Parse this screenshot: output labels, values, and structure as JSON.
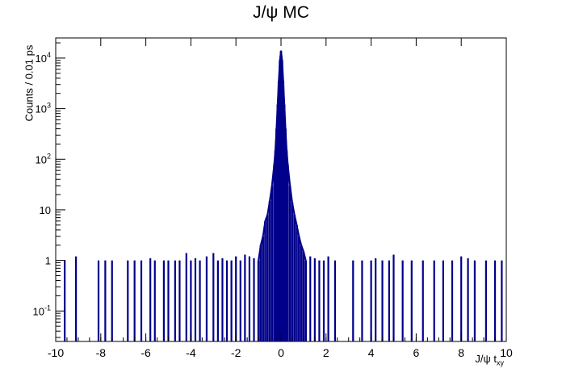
{
  "chart_data": {
    "type": "histogram",
    "title": "J/ψ MC",
    "xlabel": "J/ψ t",
    "xlabel_sub": "xy",
    "ylabel": "Counts / 0.01 ps",
    "xlim": [
      -10,
      10
    ],
    "ylim": [
      0.025,
      25000
    ],
    "yscale": "log",
    "x_ticks": [
      -10,
      -8,
      -6,
      -4,
      -2,
      0,
      2,
      4,
      6,
      8,
      10
    ],
    "x_tick_labels": [
      "-10",
      "-8",
      "-6",
      "-4",
      "-2",
      "0",
      "2",
      "4",
      "6",
      "8",
      "10"
    ],
    "y_ticks": [
      0.1,
      1,
      10,
      100,
      1000,
      10000
    ],
    "y_tick_labels": [
      {
        "base": "10",
        "exp": "-1"
      },
      {
        "base": "1",
        "exp": ""
      },
      {
        "base": "10",
        "exp": ""
      },
      {
        "base": "10",
        "exp": "2"
      },
      {
        "base": "10",
        "exp": "3"
      },
      {
        "base": "10",
        "exp": "4"
      }
    ],
    "color": "#00008b",
    "peak": {
      "x": 0.0,
      "y": 14000
    },
    "core": [
      [
        -1.0,
        1
      ],
      [
        -0.9,
        2
      ],
      [
        -0.8,
        3
      ],
      [
        -0.7,
        6
      ],
      [
        -0.6,
        8
      ],
      [
        -0.5,
        15
      ],
      [
        -0.4,
        30
      ],
      [
        -0.3,
        80
      ],
      [
        -0.25,
        150
      ],
      [
        -0.2,
        400
      ],
      [
        -0.15,
        1200
      ],
      [
        -0.1,
        3500
      ],
      [
        -0.05,
        9000
      ],
      [
        0.0,
        14000
      ],
      [
        0.05,
        9000
      ],
      [
        0.1,
        3500
      ],
      [
        0.15,
        1200
      ],
      [
        0.2,
        400
      ],
      [
        0.25,
        150
      ],
      [
        0.3,
        80
      ],
      [
        0.4,
        30
      ],
      [
        0.5,
        14
      ],
      [
        0.6,
        8
      ],
      [
        0.7,
        5
      ],
      [
        0.8,
        3
      ],
      [
        0.9,
        2
      ],
      [
        1.0,
        1.5
      ],
      [
        1.1,
        1
      ]
    ],
    "tails": [
      [
        -9.6,
        1
      ],
      [
        -9.1,
        1.2
      ],
      [
        -8.1,
        1
      ],
      [
        -7.8,
        1
      ],
      [
        -7.5,
        1
      ],
      [
        -6.8,
        1
      ],
      [
        -6.5,
        1
      ],
      [
        -6.2,
        1
      ],
      [
        -5.8,
        1.1
      ],
      [
        -5.6,
        1
      ],
      [
        -5.2,
        1
      ],
      [
        -5.0,
        1
      ],
      [
        -4.7,
        1
      ],
      [
        -4.5,
        1
      ],
      [
        -4.2,
        1.4
      ],
      [
        -4.0,
        1
      ],
      [
        -3.8,
        1.1
      ],
      [
        -3.6,
        1
      ],
      [
        -3.3,
        1.2
      ],
      [
        -3.0,
        1.4
      ],
      [
        -2.8,
        1
      ],
      [
        -2.6,
        1.1
      ],
      [
        -2.4,
        1
      ],
      [
        -2.2,
        1
      ],
      [
        -2.0,
        1.2
      ],
      [
        -1.8,
        1
      ],
      [
        -1.6,
        1.3
      ],
      [
        -1.4,
        1.2
      ],
      [
        -1.2,
        1.1
      ],
      [
        1.3,
        1.2
      ],
      [
        1.5,
        1.1
      ],
      [
        1.7,
        1
      ],
      [
        1.9,
        1
      ],
      [
        2.1,
        1.2
      ],
      [
        2.4,
        1
      ],
      [
        3.2,
        1
      ],
      [
        3.6,
        1
      ],
      [
        4.0,
        1
      ],
      [
        4.2,
        1.1
      ],
      [
        4.5,
        1
      ],
      [
        4.8,
        1
      ],
      [
        5.0,
        1.3
      ],
      [
        5.4,
        1
      ],
      [
        5.8,
        1
      ],
      [
        6.3,
        1
      ],
      [
        6.8,
        1
      ],
      [
        7.2,
        1
      ],
      [
        7.6,
        1
      ],
      [
        8.0,
        1.2
      ],
      [
        8.3,
        1.1
      ],
      [
        8.6,
        1
      ],
      [
        9.1,
        1
      ],
      [
        9.5,
        1
      ],
      [
        9.8,
        1
      ]
    ]
  }
}
